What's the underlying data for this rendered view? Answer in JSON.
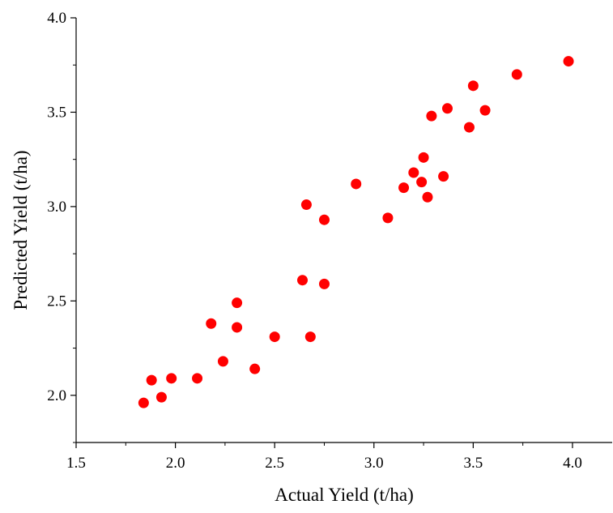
{
  "colors": {
    "marker": "#ff0000",
    "axis": "#000000",
    "background": "#ffffff"
  },
  "chart_data": {
    "type": "scatter",
    "title": "",
    "xlabel": "Actual Yield (t/ha)",
    "ylabel": "Predicted Yield (t/ha)",
    "xlim": [
      1.5,
      4.2
    ],
    "ylim": [
      1.75,
      4.0
    ],
    "x_ticks": [
      "1.5",
      "2.0",
      "2.5",
      "3.0",
      "3.5",
      "4.0"
    ],
    "y_ticks": [
      "2.0",
      "2.5",
      "3.0",
      "3.5",
      "4.0"
    ],
    "grid": false,
    "legend": "none",
    "series": [
      {
        "color": "#ff0000",
        "points": [
          {
            "x": 1.84,
            "y": 1.96
          },
          {
            "x": 1.88,
            "y": 2.08
          },
          {
            "x": 1.93,
            "y": 1.99
          },
          {
            "x": 1.98,
            "y": 2.09
          },
          {
            "x": 2.11,
            "y": 2.09
          },
          {
            "x": 2.18,
            "y": 2.38
          },
          {
            "x": 2.24,
            "y": 2.18
          },
          {
            "x": 2.31,
            "y": 2.49
          },
          {
            "x": 2.31,
            "y": 2.36
          },
          {
            "x": 2.4,
            "y": 2.14
          },
          {
            "x": 2.5,
            "y": 2.31
          },
          {
            "x": 2.64,
            "y": 2.61
          },
          {
            "x": 2.66,
            "y": 3.01
          },
          {
            "x": 2.68,
            "y": 2.31
          },
          {
            "x": 2.75,
            "y": 2.93
          },
          {
            "x": 2.75,
            "y": 2.59
          },
          {
            "x": 2.91,
            "y": 3.12
          },
          {
            "x": 3.07,
            "y": 2.94
          },
          {
            "x": 3.15,
            "y": 3.1
          },
          {
            "x": 3.2,
            "y": 3.18
          },
          {
            "x": 3.24,
            "y": 3.13
          },
          {
            "x": 3.25,
            "y": 3.26
          },
          {
            "x": 3.27,
            "y": 3.05
          },
          {
            "x": 3.29,
            "y": 3.48
          },
          {
            "x": 3.35,
            "y": 3.16
          },
          {
            "x": 3.37,
            "y": 3.52
          },
          {
            "x": 3.48,
            "y": 3.42
          },
          {
            "x": 3.5,
            "y": 3.64
          },
          {
            "x": 3.56,
            "y": 3.51
          },
          {
            "x": 3.72,
            "y": 3.7
          },
          {
            "x": 3.98,
            "y": 3.77
          }
        ]
      }
    ]
  }
}
